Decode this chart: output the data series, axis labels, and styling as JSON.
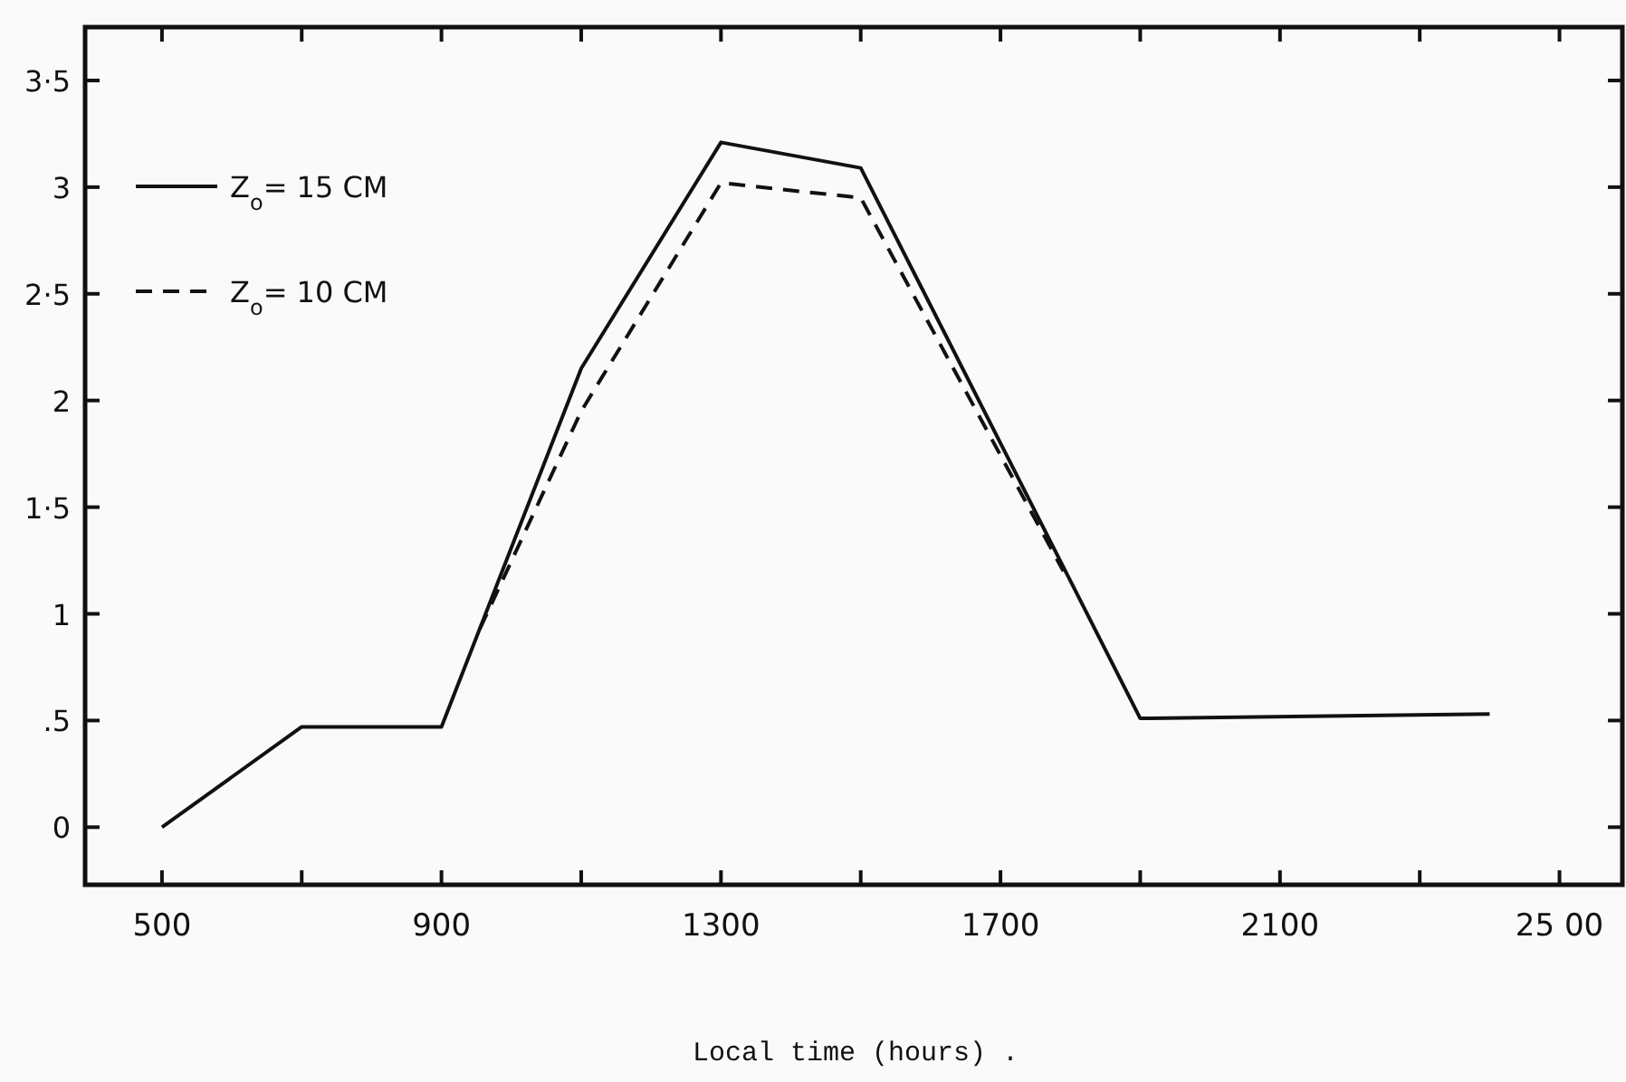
{
  "chart_data": {
    "type": "line",
    "xlabel": "Local time (hours) .",
    "xlim": [
      390,
      2590
    ],
    "ylim": [
      -0.27,
      3.75
    ],
    "xticks": [
      500,
      {
        "value": 700,
        "label": null
      },
      900,
      {
        "value": 1100,
        "label": null
      },
      1300,
      {
        "value": 1500,
        "label": null
      },
      1700,
      {
        "value": 1900,
        "label": null
      },
      2100,
      {
        "value": 2300,
        "label": null
      },
      {
        "value": 2500,
        "label": "25 00"
      }
    ],
    "yticks": [
      0,
      {
        "value": 0.5,
        "label": ".5"
      },
      1,
      {
        "value": 1.5,
        "label": "1·5"
      },
      2,
      {
        "value": 2.5,
        "label": "2·5"
      },
      3,
      {
        "value": 3.5,
        "label": "3·5"
      }
    ],
    "legend": "top left",
    "grid": false,
    "marker": "none",
    "series": [
      {
        "name": "Z$_{o}$= 15 CM",
        "color": "#111111",
        "line_style": "solid",
        "x": [
          500,
          700,
          900,
          1100,
          1300,
          1500,
          1900,
          2400
        ],
        "values": [
          0,
          0.47,
          0.47,
          2.15,
          3.21,
          3.09,
          0.51,
          0.53
        ]
      },
      {
        "name": "Z$_{o}$= 10 CM",
        "color": "#111111",
        "line_style": "dashed",
        "x": [
          955,
          1100,
          1300,
          1500,
          1790
        ],
        "values": [
          0.93,
          1.95,
          3.02,
          2.95,
          1.2
        ]
      }
    ]
  }
}
